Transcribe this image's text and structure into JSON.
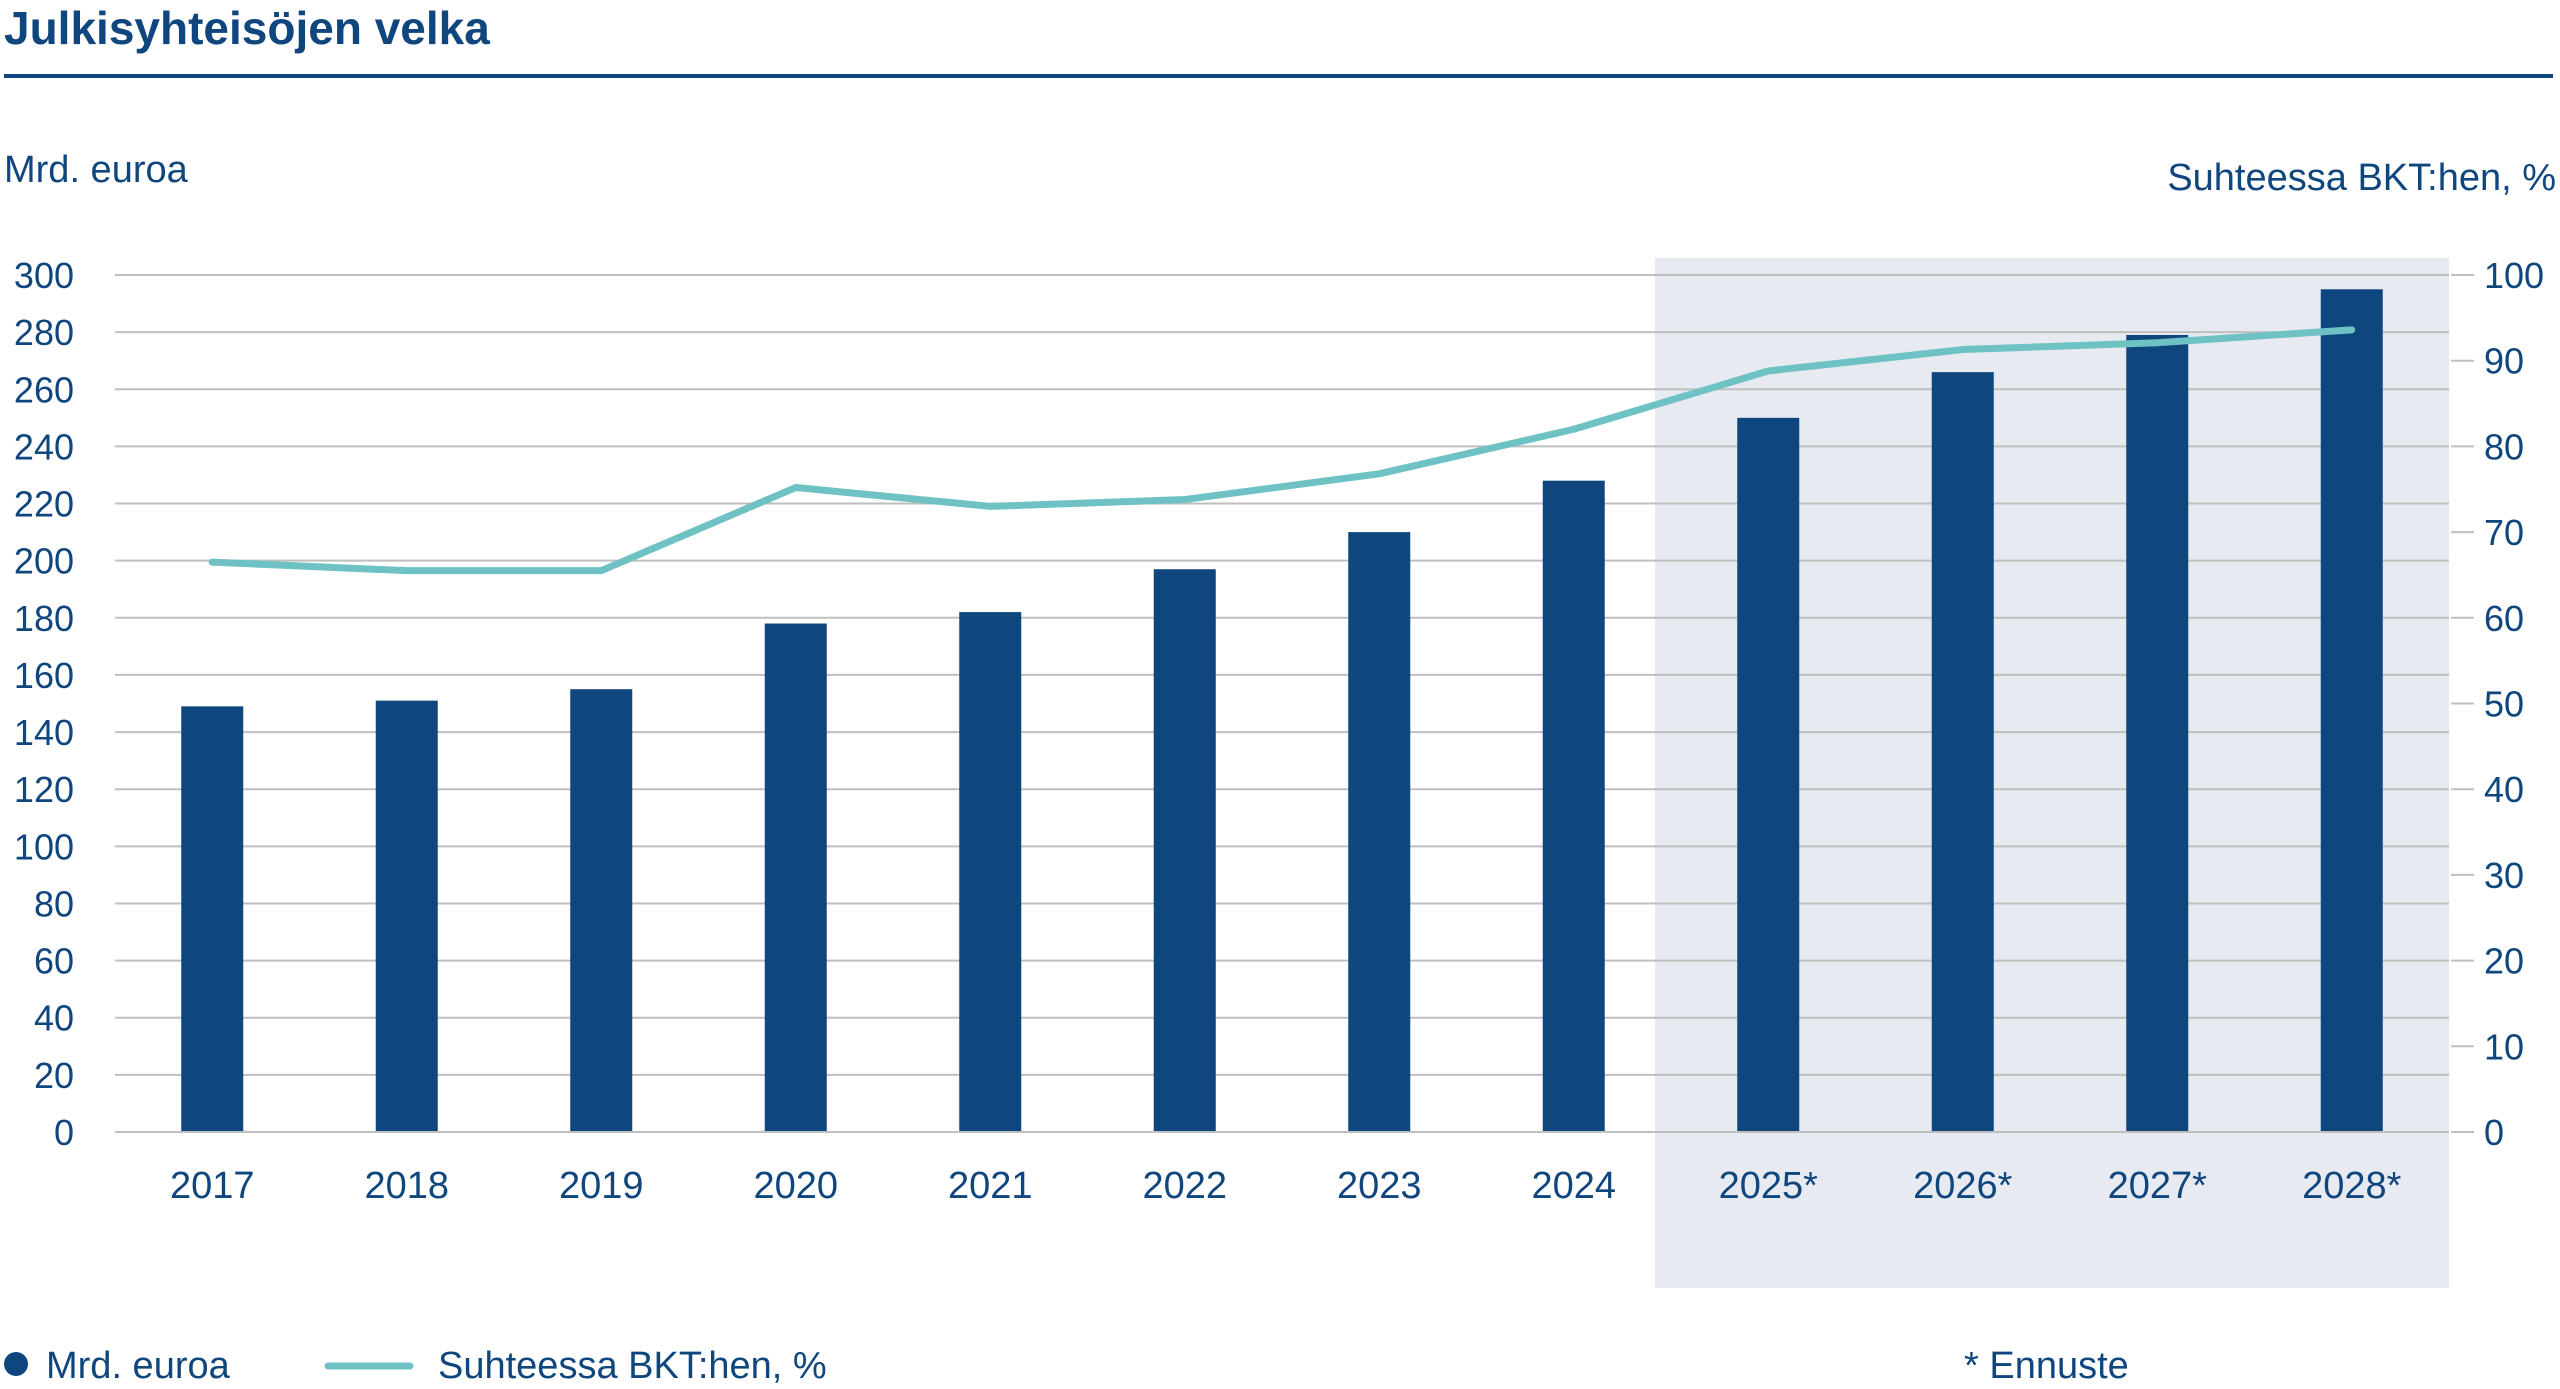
{
  "colors": {
    "title": "#0f467e",
    "text": "#0f467e",
    "bar": "#0f467e",
    "line": "#6fc2c4",
    "grid": "#bfbfbf",
    "axis": "#bfbfbf",
    "forecast_shade": "#e7ebf1"
  },
  "chart_data": {
    "type": "bar",
    "title": "Julkisyhteisöjen velka",
    "categories": [
      "2017",
      "2018",
      "2019",
      "2020",
      "2021",
      "2022",
      "2023",
      "2024",
      "2025*",
      "2026*",
      "2027*",
      "2028*"
    ],
    "forecast_start_index": 8,
    "y_left": {
      "label": "Mrd. euroa",
      "ylim": [
        0,
        300
      ],
      "ticks": [
        0,
        20,
        40,
        60,
        80,
        100,
        120,
        140,
        160,
        180,
        200,
        220,
        240,
        260,
        280,
        300
      ]
    },
    "y_right": {
      "label": "Suhteessa BKT:hen, %",
      "ylim": [
        0,
        100
      ],
      "ticks": [
        0,
        10,
        20,
        30,
        40,
        50,
        60,
        70,
        80,
        90,
        100
      ]
    },
    "grid": true,
    "legend_position": "bottom",
    "series": [
      {
        "name": "Mrd. euroa",
        "type": "bar",
        "axis": "left",
        "values": [
          149,
          151,
          155,
          178,
          182,
          197,
          210,
          228,
          250,
          266,
          279,
          295
        ]
      },
      {
        "name": "Suhteessa BKT:hen, %",
        "type": "line",
        "axis": "right",
        "values": [
          66.5,
          65.5,
          65.5,
          75.2,
          73.0,
          73.8,
          76.8,
          82.0,
          88.8,
          91.3,
          92.1,
          93.6
        ]
      }
    ],
    "legend_note": "* Ennuste"
  }
}
